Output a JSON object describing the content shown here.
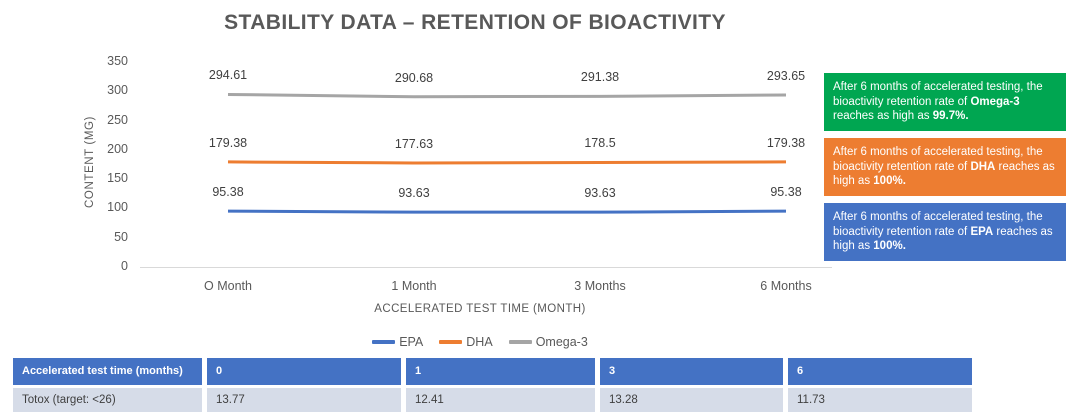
{
  "title": "STABILITY DATA – RETENTION OF BIOACTIVITY",
  "chart_data": {
    "type": "line",
    "title": "STABILITY DATA – RETENTION OF BIOACTIVITY",
    "categories": [
      "O Month",
      "1 Month",
      "3 Months",
      "6 Months"
    ],
    "series": [
      {
        "name": "EPA",
        "color": "#4472C4",
        "values": [
          95.38,
          93.63,
          93.63,
          95.38
        ]
      },
      {
        "name": "DHA",
        "color": "#ED7D31",
        "values": [
          179.38,
          177.63,
          178.5,
          179.38
        ]
      },
      {
        "name": "Omega-3",
        "color": "#A5A5A5",
        "values": [
          294.61,
          290.68,
          291.38,
          293.65
        ]
      }
    ],
    "xlabel": "ACCELERATED TEST TIME (MONTH)",
    "ylabel": "CONTENT (MG)",
    "ylim": [
      0,
      350
    ],
    "yticks": [
      350,
      300,
      250,
      200,
      150,
      100,
      50,
      0
    ],
    "grid": false,
    "data_labels": true,
    "legend_position": "bottom"
  },
  "annotations": [
    {
      "color": "#00A651",
      "pre": "After 6 months of accelerated testing, the bioactivity retention rate of ",
      "bold1": "Omega-3",
      "mid": " reaches as high as ",
      "bold2": "99.7%."
    },
    {
      "color": "#ED7D31",
      "pre": "After 6 months of accelerated testing, the bioactivity retention rate of ",
      "bold1": "DHA",
      "mid": " reaches as high as ",
      "bold2": "100%."
    },
    {
      "color": "#4472C4",
      "pre": "After 6 months of accelerated testing, the bioactivity retention rate of ",
      "bold1": "EPA",
      "mid": " reaches as high as ",
      "bold2": "100%."
    }
  ],
  "table": {
    "header_bg": "#4472C4",
    "row_bg": "#D6DCE8",
    "header": [
      "Accelerated test time (months)",
      "0",
      "1",
      "3",
      "6"
    ],
    "rows": [
      [
        "Totox (target: <26)",
        "13.77",
        "12.41",
        "13.28",
        "11.73"
      ]
    ]
  }
}
